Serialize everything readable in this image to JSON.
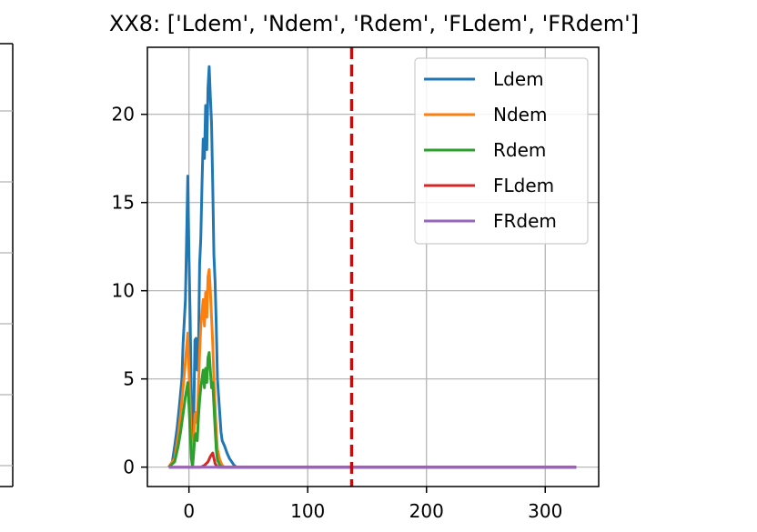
{
  "chart_data": {
    "type": "line",
    "title": "XX8: ['Ldem', 'Ndem', 'Rdem', 'FLdem', 'FRdem']",
    "xlabel": "",
    "ylabel": "",
    "xlim": [
      -35,
      345
    ],
    "ylim": [
      -1.1,
      23.8
    ],
    "xticks": [
      0,
      100,
      200,
      300
    ],
    "yticks": [
      0,
      5,
      10,
      15,
      20
    ],
    "grid": true,
    "legend_position": "top-right",
    "vline": {
      "x": 137,
      "color": "#e00000",
      "style": "dashed"
    },
    "series": [
      {
        "name": "Ldem",
        "color": "#1f77b4",
        "points": [
          [
            -17,
            0
          ],
          [
            -14,
            0.3
          ],
          [
            -12,
            1.2
          ],
          [
            -10,
            2.2
          ],
          [
            -8,
            3.5
          ],
          [
            -6,
            5.0
          ],
          [
            -5,
            7.0
          ],
          [
            -3,
            9.5
          ],
          [
            -2,
            13.0
          ],
          [
            -1,
            16.5
          ],
          [
            0,
            12.0
          ],
          [
            1,
            8.5
          ],
          [
            2,
            4.0
          ],
          [
            3,
            0.8
          ],
          [
            4,
            2.5
          ],
          [
            5,
            7.2
          ],
          [
            6,
            7.3
          ],
          [
            7,
            5.5
          ],
          [
            8,
            6.5
          ],
          [
            9,
            11.5
          ],
          [
            10,
            13.0
          ],
          [
            11,
            16.0
          ],
          [
            12,
            18.6
          ],
          [
            13,
            17.5
          ],
          [
            14,
            20.5
          ],
          [
            15,
            18.0
          ],
          [
            16,
            21.5
          ],
          [
            17,
            22.7
          ],
          [
            18,
            21.0
          ],
          [
            19,
            19.5
          ],
          [
            20,
            16.0
          ],
          [
            21,
            12.0
          ],
          [
            22,
            10.5
          ],
          [
            23,
            8.0
          ],
          [
            24,
            5.0
          ],
          [
            25,
            4.0
          ],
          [
            26,
            3.0
          ],
          [
            27,
            2.0
          ],
          [
            28,
            1.5
          ],
          [
            30,
            1.2
          ],
          [
            32,
            0.8
          ],
          [
            34,
            0.5
          ],
          [
            36,
            0.3
          ],
          [
            38,
            0.1
          ],
          [
            40,
            0
          ],
          [
            326,
            0
          ]
        ]
      },
      {
        "name": "Ndem",
        "color": "#ff7f0e",
        "points": [
          [
            -17,
            0
          ],
          [
            -12,
            0.5
          ],
          [
            -9,
            1.8
          ],
          [
            -7,
            3.0
          ],
          [
            -5,
            4.5
          ],
          [
            -3,
            6.0
          ],
          [
            -1,
            7.6
          ],
          [
            0,
            5.5
          ],
          [
            1,
            3.5
          ],
          [
            2,
            1.0
          ],
          [
            3,
            0
          ],
          [
            4,
            1.5
          ],
          [
            5,
            3.0
          ],
          [
            6,
            3.1
          ],
          [
            7,
            2.5
          ],
          [
            8,
            4.5
          ],
          [
            9,
            6.5
          ],
          [
            10,
            8.0
          ],
          [
            12,
            9.5
          ],
          [
            13,
            8.0
          ],
          [
            14,
            9.9
          ],
          [
            15,
            8.5
          ],
          [
            16,
            10.8
          ],
          [
            17,
            11.2
          ],
          [
            18,
            10.0
          ],
          [
            19,
            8.5
          ],
          [
            20,
            7.0
          ],
          [
            21,
            5.0
          ],
          [
            22,
            3.5
          ],
          [
            23,
            2.0
          ],
          [
            24,
            1.0
          ],
          [
            26,
            0.4
          ],
          [
            28,
            0.1
          ],
          [
            30,
            0
          ],
          [
            326,
            0
          ]
        ]
      },
      {
        "name": "Rdem",
        "color": "#2ca02c",
        "points": [
          [
            -17,
            0
          ],
          [
            -12,
            0.3
          ],
          [
            -9,
            1.2
          ],
          [
            -7,
            2.0
          ],
          [
            -5,
            3.0
          ],
          [
            -3,
            4.0
          ],
          [
            -1,
            4.8
          ],
          [
            0,
            3.5
          ],
          [
            1,
            2.0
          ],
          [
            2,
            0.5
          ],
          [
            3,
            0
          ],
          [
            4,
            0.8
          ],
          [
            5,
            1.8
          ],
          [
            6,
            1.9
          ],
          [
            7,
            1.5
          ],
          [
            8,
            2.8
          ],
          [
            9,
            3.8
          ],
          [
            10,
            4.5
          ],
          [
            12,
            5.5
          ],
          [
            13,
            4.5
          ],
          [
            14,
            5.6
          ],
          [
            15,
            4.8
          ],
          [
            16,
            6.2
          ],
          [
            17,
            6.5
          ],
          [
            18,
            5.5
          ],
          [
            19,
            4.5
          ],
          [
            20,
            4.8
          ],
          [
            21,
            3.5
          ],
          [
            22,
            2.2
          ],
          [
            23,
            1.0
          ],
          [
            24,
            0.4
          ],
          [
            26,
            0.1
          ],
          [
            28,
            0
          ],
          [
            326,
            0
          ]
        ]
      },
      {
        "name": "FLdem",
        "color": "#d62728",
        "points": [
          [
            -17,
            0
          ],
          [
            10,
            0
          ],
          [
            13,
            0.1
          ],
          [
            16,
            0.3
          ],
          [
            18,
            0.6
          ],
          [
            20,
            0.8
          ],
          [
            21,
            0.5
          ],
          [
            22,
            0.2
          ],
          [
            24,
            0
          ],
          [
            326,
            0
          ]
        ]
      },
      {
        "name": "FRdem",
        "color": "#9467bd",
        "points": [
          [
            -17,
            0
          ],
          [
            326,
            0
          ]
        ]
      }
    ]
  }
}
